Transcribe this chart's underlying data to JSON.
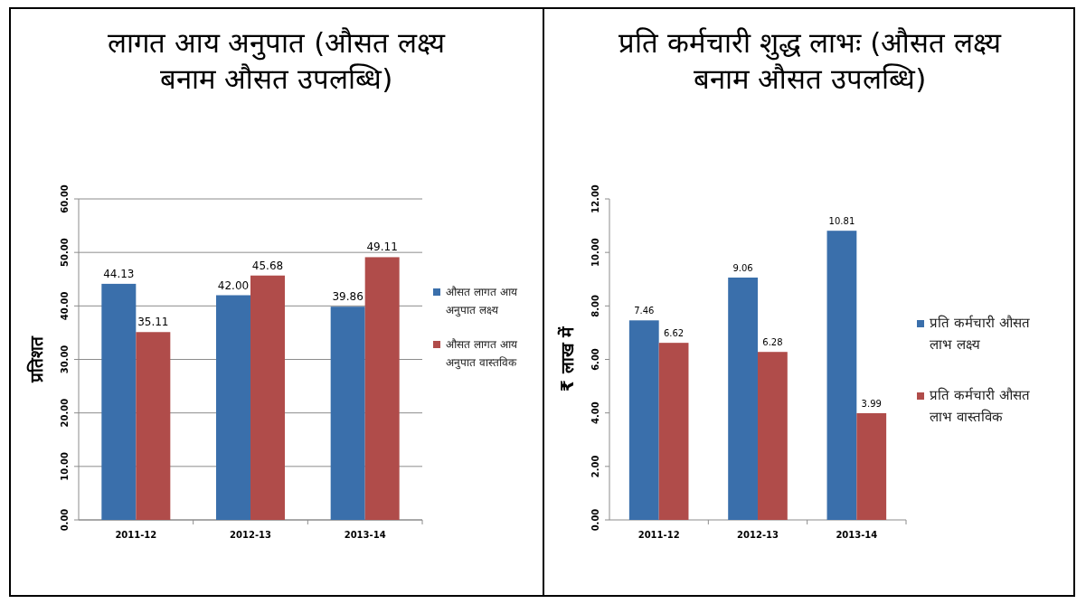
{
  "chart_data": [
    {
      "type": "bar",
      "title": "लागत आय अनुपात (औसत लक्ष्य बनाम औसत उपलब्धि)",
      "ylabel": "प्रतिशत",
      "categories": [
        "2011-12",
        "2012-13",
        "2013-14"
      ],
      "series": [
        {
          "name": "औसत लागत आय अनुपात लक्ष्य",
          "color": "#3a6fab",
          "values": [
            44.13,
            42.0,
            39.86
          ],
          "value_labels": [
            "44.13",
            "42.00",
            "39.86"
          ]
        },
        {
          "name": "औसत लागत आय अनुपात वास्तविक",
          "color": "#b04c4a",
          "values": [
            35.11,
            45.68,
            49.11
          ],
          "value_labels": [
            "35.11",
            "45.68",
            "49.11"
          ]
        }
      ],
      "ylim": [
        0,
        60
      ],
      "yticks": [
        {
          "value": 0,
          "label": "0.00"
        },
        {
          "value": 10,
          "label": "10.00"
        },
        {
          "value": 20,
          "label": "20.00"
        },
        {
          "value": 30,
          "label": "30.00"
        },
        {
          "value": 40,
          "label": "40.00"
        },
        {
          "value": 50,
          "label": "50.00"
        },
        {
          "value": 60,
          "label": "60.00"
        }
      ],
      "grid": "y",
      "legend": "right"
    },
    {
      "type": "bar",
      "title": "प्रति कर्मचारी शुद्ध लाभः (औसत लक्ष्य बनाम औसत उपलब्धि)",
      "ylabel": "₹ लाख में",
      "categories": [
        "2011-12",
        "2012-13",
        "2013-14"
      ],
      "series": [
        {
          "name": "प्रति कर्मचारी औसत लाभ लक्ष्य",
          "color": "#3a6fab",
          "values": [
            7.46,
            9.06,
            10.81
          ],
          "value_labels": [
            "7.46",
            "9.06",
            "10.81"
          ]
        },
        {
          "name": "प्रति कर्मचारी औसत लाभ वास्तविक",
          "color": "#b04c4a",
          "values": [
            6.62,
            6.28,
            3.99
          ],
          "value_labels": [
            "6.62",
            "6.28",
            "3.99"
          ]
        }
      ],
      "ylim": [
        0,
        12
      ],
      "yticks": [
        {
          "value": 0,
          "label": "0.00"
        },
        {
          "value": 2,
          "label": "2.00"
        },
        {
          "value": 4,
          "label": "4.00"
        },
        {
          "value": 6,
          "label": "6.00"
        },
        {
          "value": 8,
          "label": "8.00"
        },
        {
          "value": 10,
          "label": "10.00"
        },
        {
          "value": 12,
          "label": "12.00"
        }
      ],
      "grid": false,
      "legend": "right"
    }
  ]
}
